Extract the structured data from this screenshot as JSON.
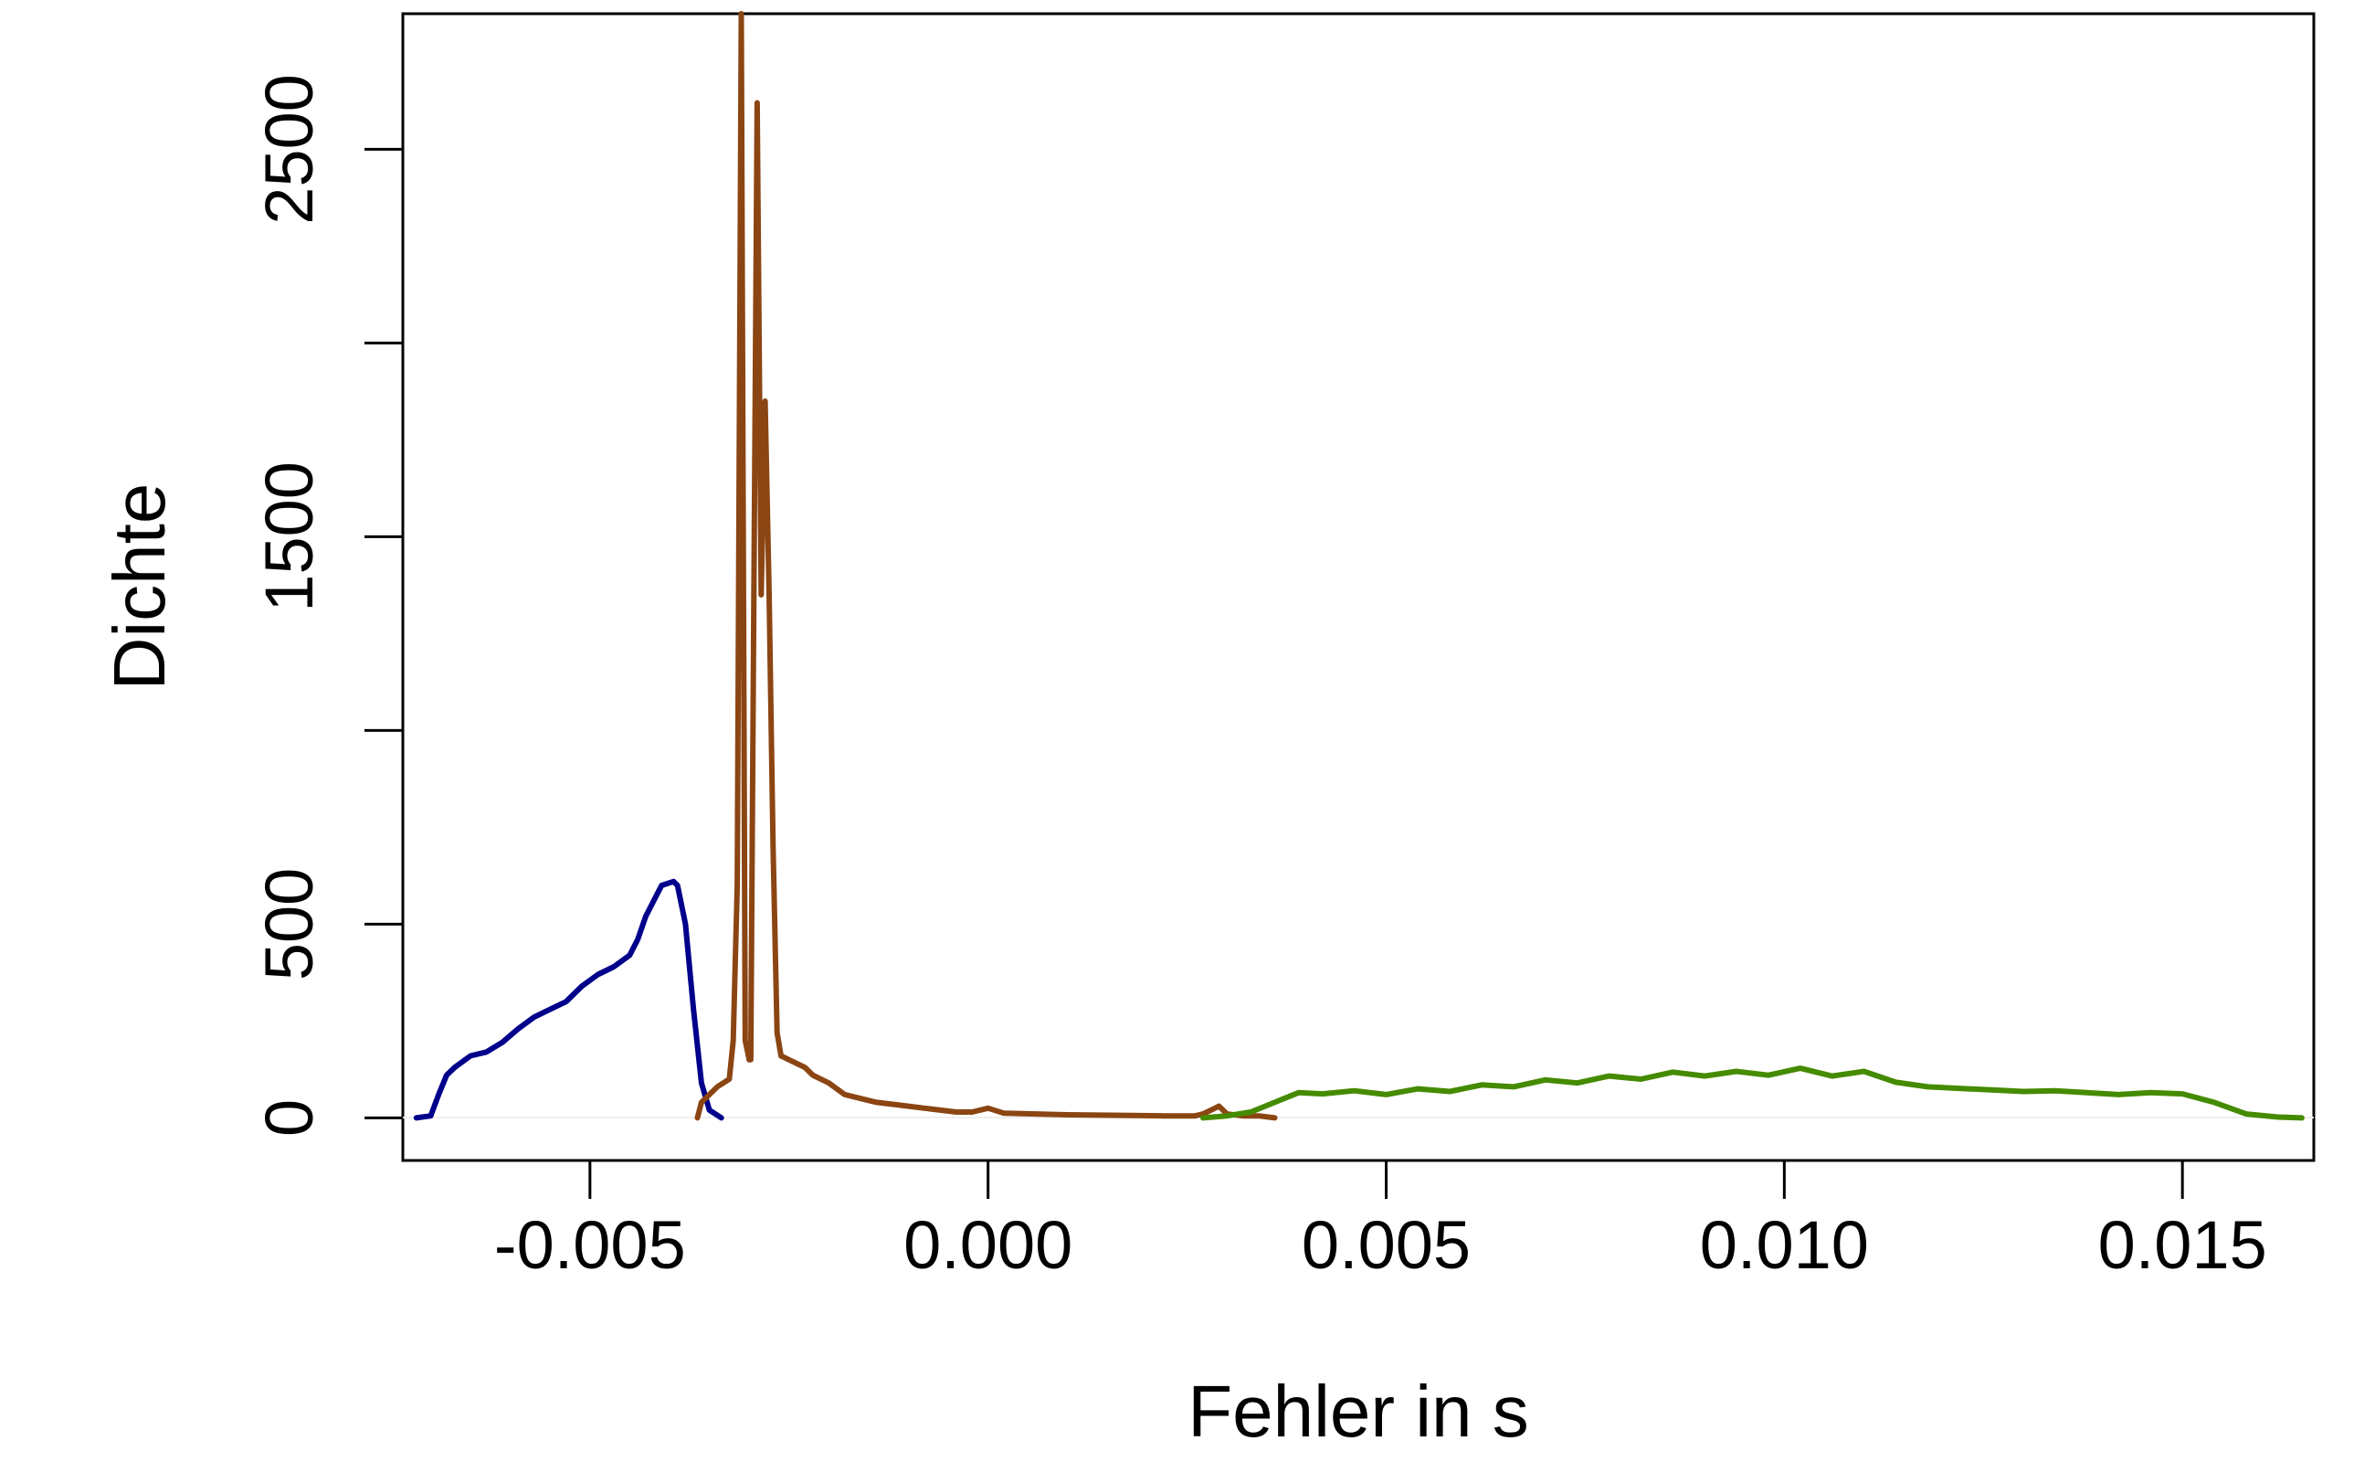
{
  "chart_data": {
    "type": "line",
    "title": "",
    "xlabel": "Fehler in s",
    "ylabel": "Dichte",
    "xlim": [
      -0.00735,
      0.01665
    ],
    "ylim": [
      -110,
      2850
    ],
    "x_ticks": [
      -0.005,
      0.0,
      0.005,
      0.01,
      0.015
    ],
    "x_tick_labels": [
      "-0.005",
      "0.000",
      "0.005",
      "0.010",
      "0.015"
    ],
    "y_ticks": [
      0,
      500,
      1000,
      1500,
      2000,
      2500
    ],
    "y_tick_labels": [
      "0",
      "500",
      "",
      "1500",
      "",
      "2500"
    ],
    "grid": false,
    "legend": "none",
    "colors": {
      "series_1": "#00008b",
      "series_2": "#8b4513",
      "series_3": "#458b00",
      "axis": "#000000"
    },
    "series": [
      {
        "color": "#00008b",
        "x": [
          -0.00718,
          -0.007,
          -0.0069,
          -0.0068,
          -0.0067,
          -0.0065,
          -0.0063,
          -0.0061,
          -0.0059,
          -0.0057,
          -0.0055,
          -0.0053,
          -0.0051,
          -0.0049,
          -0.0047,
          -0.0045,
          -0.0044,
          -0.0043,
          -0.0042,
          -0.0041,
          -0.00395,
          -0.0039,
          -0.0038,
          -0.0037,
          -0.0036,
          -0.0035,
          -0.00335
        ],
        "y": [
          0,
          5,
          60,
          110,
          130,
          160,
          170,
          195,
          230,
          260,
          280,
          300,
          340,
          370,
          390,
          420,
          460,
          520,
          560,
          600,
          610,
          600,
          500,
          280,
          90,
          20,
          0
        ]
      },
      {
        "color": "#8b4513",
        "x": [
          -0.00365,
          -0.0036,
          -0.0035,
          -0.0034,
          -0.00325,
          -0.0032,
          -0.00315,
          -0.0031,
          -0.00305,
          -0.003,
          -0.00298,
          -0.0029,
          -0.00285,
          -0.0028,
          -0.00275,
          -0.0027,
          -0.00265,
          -0.0026,
          -0.0025,
          -0.0024,
          -0.0023,
          -0.0022,
          -0.002,
          -0.0018,
          -0.0016,
          -0.0014,
          -0.0012,
          -0.001,
          -0.0008,
          -0.0006,
          -0.0004,
          -0.0002,
          0.0,
          0.0002,
          0.0006,
          0.001,
          0.0014,
          0.0018,
          0.0022,
          0.0026,
          0.0027,
          0.0028,
          0.0029,
          0.003,
          0.0032,
          0.0034,
          0.0036
        ],
        "y": [
          0,
          40,
          60,
          80,
          100,
          200,
          600,
          2850,
          200,
          150,
          150,
          2620,
          1350,
          1850,
          1350,
          700,
          220,
          160,
          150,
          140,
          130,
          110,
          90,
          60,
          50,
          40,
          35,
          30,
          25,
          20,
          15,
          15,
          25,
          12,
          10,
          8,
          7,
          6,
          5,
          5,
          10,
          20,
          30,
          10,
          5,
          5,
          0
        ]
      },
      {
        "color": "#458b00",
        "x": [
          0.0027,
          0.003,
          0.0033,
          0.0036,
          0.0039,
          0.0042,
          0.0046,
          0.005,
          0.0054,
          0.0058,
          0.0062,
          0.0066,
          0.007,
          0.0074,
          0.0078,
          0.0082,
          0.0086,
          0.009,
          0.0094,
          0.0098,
          0.0102,
          0.0106,
          0.011,
          0.0114,
          0.0118,
          0.0122,
          0.0126,
          0.013,
          0.0134,
          0.0138,
          0.0142,
          0.0146,
          0.015,
          0.0154,
          0.0158,
          0.0162,
          0.0165
        ],
        "y": [
          0,
          5,
          15,
          40,
          65,
          62,
          70,
          60,
          75,
          68,
          85,
          80,
          98,
          90,
          108,
          100,
          118,
          108,
          120,
          110,
          128,
          108,
          120,
          92,
          80,
          76,
          72,
          68,
          70,
          65,
          60,
          65,
          62,
          40,
          10,
          2,
          0
        ]
      }
    ]
  }
}
